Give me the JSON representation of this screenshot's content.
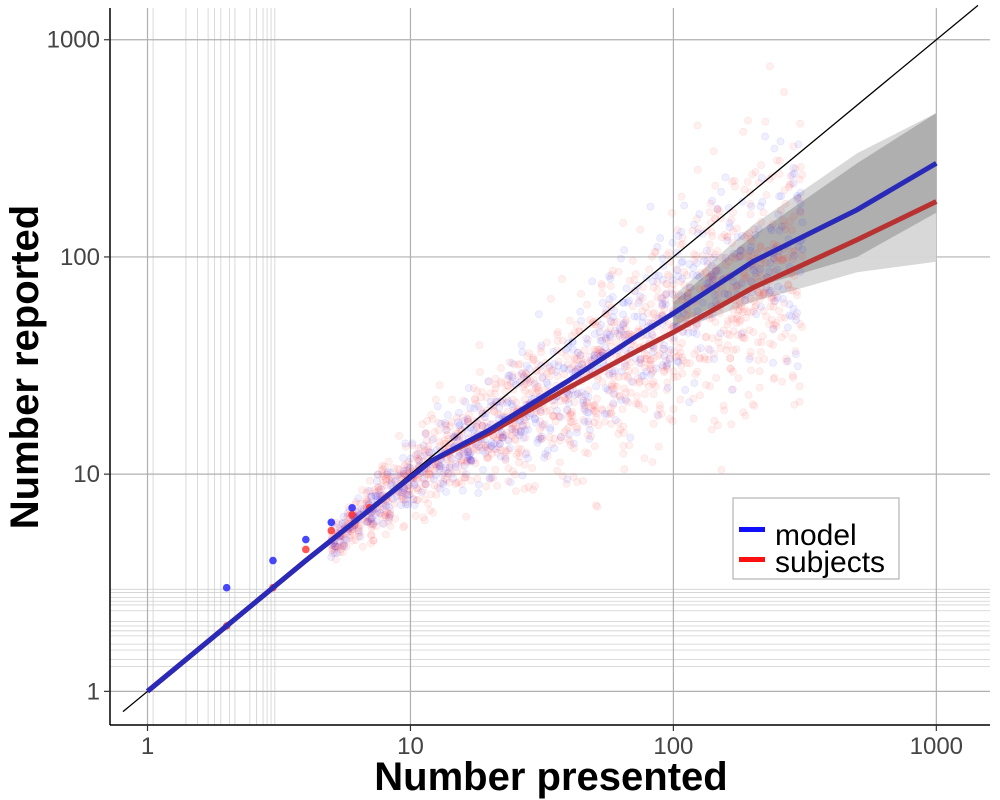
{
  "chart_data": {
    "type": "scatter",
    "xlabel": "Number presented",
    "ylabel": "Number reported",
    "x_scale": "log10",
    "y_scale": "log10",
    "xlim": [
      0.72,
      1600
    ],
    "ylim": [
      0.7,
      1400
    ],
    "x_ticks": [
      {
        "value": 1,
        "label": "1"
      },
      {
        "value": 10,
        "label": "10"
      },
      {
        "value": 100,
        "label": "100"
      },
      {
        "value": 1000,
        "label": "1000"
      }
    ],
    "y_ticks": [
      {
        "value": 1,
        "label": "1"
      },
      {
        "value": 10,
        "label": "10"
      },
      {
        "value": 100,
        "label": "100"
      },
      {
        "value": 1000,
        "label": "1000"
      }
    ],
    "x_minor_gridlines": [
      1.05,
      1.4,
      1.55,
      1.7,
      1.8,
      1.9,
      2.05,
      2.15,
      2.45,
      2.6,
      2.75,
      2.85,
      2.95,
      3.05
    ],
    "y_minor_gridlines": [
      1.3,
      1.4,
      1.55,
      1.65,
      1.8,
      1.9,
      2.0,
      2.1,
      2.35,
      2.5,
      2.6,
      2.7,
      2.85,
      2.95
    ],
    "grid": true,
    "legend": {
      "position": "bottom-right",
      "entries": [
        {
          "name": "model",
          "color": "#1010ff"
        },
        {
          "name": "subjects",
          "color": "#ff1010"
        }
      ]
    },
    "colors": {
      "model_points": "#1a1aff",
      "subject_points": "#ff2a2a",
      "model_line": "#2a2ab8",
      "subject_line": "#b83232",
      "identity_line": "#000000",
      "ribbon_outer": "#d6d6d6",
      "ribbon_inner": "#a8a8a8"
    },
    "series": [
      {
        "name": "model",
        "fit": [
          {
            "x": 1,
            "y": 1
          },
          {
            "x": 2,
            "y": 2
          },
          {
            "x": 4,
            "y": 4
          },
          {
            "x": 8,
            "y": 7.8
          },
          {
            "x": 12,
            "y": 11.5
          },
          {
            "x": 20,
            "y": 16
          },
          {
            "x": 40,
            "y": 27
          },
          {
            "x": 70,
            "y": 42
          },
          {
            "x": 100,
            "y": 55
          },
          {
            "x": 200,
            "y": 95
          },
          {
            "x": 500,
            "y": 165
          },
          {
            "x": 1000,
            "y": 270
          }
        ],
        "band": [
          {
            "x": 100,
            "lower": 48,
            "upper": 62
          },
          {
            "x": 200,
            "lower": 72,
            "upper": 125
          },
          {
            "x": 500,
            "lower": 100,
            "upper": 270
          },
          {
            "x": 1000,
            "lower": 160,
            "upper": 460
          }
        ],
        "band_outer": [
          {
            "x": 100,
            "lower": 45,
            "upper": 66
          },
          {
            "x": 200,
            "lower": 62,
            "upper": 140
          },
          {
            "x": 500,
            "lower": 85,
            "upper": 300
          },
          {
            "x": 1000,
            "lower": 95,
            "upper": 460
          }
        ]
      },
      {
        "name": "subjects",
        "fit": [
          {
            "x": 1,
            "y": 1
          },
          {
            "x": 2,
            "y": 2
          },
          {
            "x": 4,
            "y": 4
          },
          {
            "x": 8,
            "y": 7.8
          },
          {
            "x": 12,
            "y": 11.5
          },
          {
            "x": 20,
            "y": 15.5
          },
          {
            "x": 40,
            "y": 25
          },
          {
            "x": 70,
            "y": 36
          },
          {
            "x": 100,
            "y": 45
          },
          {
            "x": 200,
            "y": 72
          },
          {
            "x": 500,
            "y": 120
          },
          {
            "x": 1000,
            "y": 180
          }
        ]
      }
    ],
    "reference_line": "y = x",
    "discrete_points": [
      {
        "x": 2,
        "y": 3,
        "series": "model"
      },
      {
        "x": 3,
        "y": 4,
        "series": "model"
      },
      {
        "x": 4,
        "y": 5,
        "series": "model"
      },
      {
        "x": 5,
        "y": 6,
        "series": "model"
      },
      {
        "x": 6,
        "y": 7,
        "series": "model"
      },
      {
        "x": 2,
        "y": 2,
        "series": "subjects"
      },
      {
        "x": 3,
        "y": 3,
        "series": "subjects"
      },
      {
        "x": 4,
        "y": 4.5,
        "series": "subjects"
      },
      {
        "x": 5,
        "y": 5.5,
        "series": "subjects"
      },
      {
        "x": 6,
        "y": 6.5,
        "series": "subjects"
      },
      {
        "x": 7,
        "y": 7,
        "series": "subjects"
      }
    ],
    "cloud_summary": [
      {
        "x_range": [
          10,
          20
        ],
        "y_center_ratio": 0.95,
        "log_spread": 0.12
      },
      {
        "x_range": [
          20,
          60
        ],
        "y_center_ratio": 0.75,
        "log_spread": 0.2
      },
      {
        "x_range": [
          60,
          150
        ],
        "y_center_ratio": 0.55,
        "log_spread": 0.28
      },
      {
        "x_range": [
          150,
          300
        ],
        "y_center_ratio": 0.5,
        "log_spread": 0.32
      }
    ]
  }
}
